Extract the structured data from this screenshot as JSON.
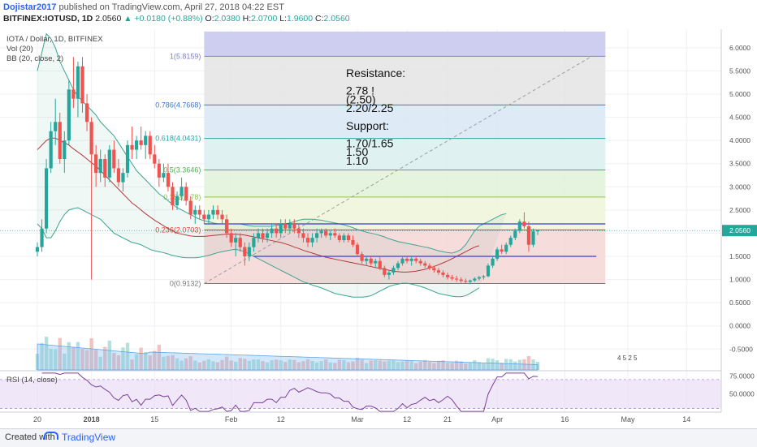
{
  "header": {
    "publisher": "Dojistar2017",
    "published_text": " published on TradingView.com, April 27, 2018 04:22 EST",
    "symbol": "BITFINEX:IOTUSD, 1D",
    "last": "2.0560",
    "change": "▲ +0.0180 (+0.88%)",
    "o_label": "O:",
    "o": "2.0380",
    "h_label": "H:",
    "h": "2.0700",
    "l_label": "L:",
    "l": "1.9600",
    "c_label": "C:",
    "c": "2.0560"
  },
  "legend": {
    "title": "IOTA / Dollar, 1D, BITFINEX",
    "vol": "Vol (20)",
    "bb": "BB (20, close, 2)",
    "rsi": "RSI (14, close)"
  },
  "footer": {
    "created": "Created with",
    "brand": "TradingView"
  },
  "colors": {
    "up": "#26a69a",
    "down": "#ef5350",
    "bb_band": "#3fa38f",
    "bb_basis": "#b3393a",
    "rsi": "#7b3f98",
    "accent": "#2962ff"
  },
  "chart_data": {
    "type": "candlestick",
    "yaxis_ticks": [
      "6.0000",
      "5.5000",
      "5.0000",
      "4.5000",
      "4.0000",
      "3.5000",
      "3.0000",
      "2.5000",
      "2.0000",
      "1.5000",
      "1.0000",
      "0.5000",
      "0.0000",
      "-0.5000"
    ],
    "yaxis_values": [
      6,
      5.5,
      5,
      4.5,
      4,
      3.5,
      3,
      2.5,
      2,
      1.5,
      1,
      0.5,
      0,
      -0.5
    ],
    "ylim": [
      -0.95,
      6.4
    ],
    "last_price_label": "2.0560",
    "last_price": 2.056,
    "rsi_ticks": [
      "75.0000",
      "50.0000"
    ],
    "rsi_tick_values": [
      75,
      50
    ],
    "x_ticks": [
      {
        "label": "20",
        "day": 0
      },
      {
        "label": "2018",
        "day": 12
      },
      {
        "label": "15",
        "day": 26
      },
      {
        "label": "Feb",
        "day": 43
      },
      {
        "label": "12",
        "day": 54
      },
      {
        "label": "Mar",
        "day": 71
      },
      {
        "label": "12",
        "day": 82
      },
      {
        "label": "21",
        "day": 91
      },
      {
        "label": "Apr",
        "day": 102
      },
      {
        "label": "16",
        "day": 117
      },
      {
        "label": "May",
        "day": 131
      },
      {
        "label": "14",
        "day": 144
      }
    ],
    "fib_levels": [
      {
        "ratio": "1",
        "value": 5.8159,
        "label": "1(5.8159)",
        "color": "#7b7fd6",
        "fill": "#c9c9f0"
      },
      {
        "ratio": "0.786",
        "value": 4.7668,
        "label": "0.786(4.7668)",
        "color": "#3b78c4",
        "fill": "#e4e4e4"
      },
      {
        "ratio": "0.618",
        "value": 4.0431,
        "label": "0.618(4.0431)",
        "color": "#2aa5a5",
        "fill": "#d8e8f4"
      },
      {
        "ratio": "0.5",
        "value": 3.3646,
        "label": "0.5(3.3646)",
        "color": "#4caf50",
        "fill": "#d9f0ee"
      },
      {
        "ratio": "0.382",
        "value": 2.78,
        "label": "0.382(2.78)",
        "color": "#8bc34a",
        "fill": "#dff2d8"
      },
      {
        "ratio": "0.236",
        "value": 2.0703,
        "label": "0.236(2.0703)",
        "color": "#e53935",
        "fill": "#eef6d9"
      },
      {
        "ratio": "0",
        "value": 0.9132,
        "label": "0(0.9132)",
        "color": "#777777",
        "fill": "#f6d6d6"
      }
    ],
    "annotation_lines": [
      "Resistance:",
      "",
      "2.78 !",
      "(2.50)",
      "2.20/2.25",
      "",
      "Support:",
      "",
      "1.70/1.65",
      "1.50",
      "1.10"
    ],
    "horizontal_lines": [
      {
        "value": 2.2,
        "from_day": 37,
        "to_day": 126
      },
      {
        "value": 1.5,
        "from_day": 48,
        "to_day": 124
      }
    ],
    "trend_line": {
      "from": {
        "day": 37,
        "value": 0.9132
      },
      "to": {
        "day": 123,
        "value": 5.8159
      }
    },
    "events_label": "4   5 2 5",
    "candles": [
      [
        1.6,
        1.8,
        1.5,
        1.7
      ],
      [
        1.7,
        2.3,
        1.6,
        2.1
      ],
      [
        2.1,
        3.6,
        2.0,
        3.4
      ],
      [
        3.4,
        4.4,
        3.3,
        4.2
      ],
      [
        4.2,
        4.9,
        3.9,
        4.4
      ],
      [
        4.4,
        4.6,
        3.5,
        3.6
      ],
      [
        3.6,
        4.2,
        3.3,
        4.0
      ],
      [
        4.0,
        5.3,
        3.9,
        5.1
      ],
      [
        5.1,
        5.8,
        4.7,
        4.9
      ],
      [
        4.9,
        5.7,
        4.5,
        5.6
      ],
      [
        5.6,
        5.8,
        4.6,
        4.8
      ],
      [
        4.8,
        5.0,
        4.2,
        4.4
      ],
      [
        4.4,
        4.5,
        1.0,
        3.7
      ],
      [
        3.7,
        3.9,
        3.0,
        3.3
      ],
      [
        3.3,
        3.8,
        3.1,
        3.6
      ],
      [
        3.6,
        3.7,
        3.0,
        3.2
      ],
      [
        3.2,
        3.9,
        3.1,
        3.8
      ],
      [
        3.8,
        4.0,
        3.3,
        3.4
      ],
      [
        3.4,
        3.6,
        3.0,
        3.1
      ],
      [
        3.1,
        3.4,
        2.9,
        3.3
      ],
      [
        3.3,
        4.0,
        3.2,
        3.9
      ],
      [
        3.9,
        4.3,
        3.6,
        3.8
      ],
      [
        3.8,
        4.1,
        3.6,
        4.0
      ],
      [
        4.0,
        4.3,
        3.8,
        3.9
      ],
      [
        3.9,
        4.2,
        3.6,
        4.1
      ],
      [
        4.1,
        4.2,
        3.6,
        3.7
      ],
      [
        3.7,
        3.9,
        3.4,
        3.5
      ],
      [
        3.5,
        3.6,
        3.0,
        3.2
      ],
      [
        3.2,
        3.5,
        3.1,
        3.3
      ],
      [
        3.3,
        3.5,
        2.9,
        3.0
      ],
      [
        3.0,
        3.1,
        2.5,
        2.6
      ],
      [
        2.6,
        2.9,
        2.5,
        2.8
      ],
      [
        2.8,
        3.2,
        2.7,
        3.0
      ],
      [
        3.0,
        3.1,
        2.6,
        2.7
      ],
      [
        2.7,
        2.8,
        2.3,
        2.4
      ],
      [
        2.4,
        2.6,
        2.2,
        2.5
      ],
      [
        2.5,
        2.6,
        2.3,
        2.4
      ],
      [
        2.4,
        2.5,
        2.2,
        2.3
      ],
      [
        2.3,
        2.5,
        2.2,
        2.4
      ],
      [
        2.4,
        2.6,
        2.3,
        2.5
      ],
      [
        2.5,
        2.6,
        2.3,
        2.4
      ],
      [
        2.4,
        2.5,
        2.2,
        2.3
      ],
      [
        2.3,
        2.4,
        1.9,
        2.0
      ],
      [
        2.0,
        2.1,
        1.7,
        1.8
      ],
      [
        1.8,
        2.0,
        1.5,
        1.9
      ],
      [
        1.9,
        2.0,
        1.6,
        1.7
      ],
      [
        1.7,
        1.8,
        1.3,
        1.5
      ],
      [
        1.5,
        1.8,
        1.4,
        1.7
      ],
      [
        1.7,
        2.0,
        1.6,
        1.9
      ],
      [
        1.9,
        2.1,
        1.8,
        2.0
      ],
      [
        2.0,
        2.1,
        1.8,
        1.9
      ],
      [
        1.9,
        2.1,
        1.8,
        2.0
      ],
      [
        2.0,
        2.2,
        1.9,
        2.1
      ],
      [
        2.1,
        2.2,
        1.9,
        2.0
      ],
      [
        2.0,
        2.3,
        1.9,
        2.2
      ],
      [
        2.2,
        2.3,
        2.0,
        2.1
      ],
      [
        2.1,
        2.3,
        2.0,
        2.2
      ],
      [
        2.2,
        2.3,
        2.0,
        2.1
      ],
      [
        2.1,
        2.2,
        1.9,
        2.0
      ],
      [
        2.0,
        2.1,
        1.8,
        1.9
      ],
      [
        1.9,
        2.0,
        1.7,
        1.8
      ],
      [
        1.8,
        2.0,
        1.7,
        1.9
      ],
      [
        1.9,
        2.1,
        1.8,
        2.0
      ],
      [
        2.0,
        2.1,
        1.9,
        2.05
      ],
      [
        2.05,
        2.1,
        1.9,
        1.95
      ],
      [
        1.95,
        2.05,
        1.85,
        2.0
      ],
      [
        2.0,
        2.1,
        1.9,
        1.95
      ],
      [
        1.95,
        2.0,
        1.8,
        1.85
      ],
      [
        1.85,
        2.0,
        1.8,
        1.95
      ],
      [
        1.95,
        2.0,
        1.8,
        1.85
      ],
      [
        1.85,
        1.95,
        1.7,
        1.75
      ],
      [
        1.75,
        1.8,
        1.5,
        1.55
      ],
      [
        1.55,
        1.6,
        1.35,
        1.4
      ],
      [
        1.4,
        1.5,
        1.3,
        1.45
      ],
      [
        1.45,
        1.5,
        1.3,
        1.35
      ],
      [
        1.35,
        1.45,
        1.25,
        1.4
      ],
      [
        1.4,
        1.5,
        1.2,
        1.25
      ],
      [
        1.25,
        1.3,
        1.05,
        1.1
      ],
      [
        1.1,
        1.2,
        1.0,
        1.15
      ],
      [
        1.15,
        1.3,
        1.1,
        1.25
      ],
      [
        1.25,
        1.4,
        1.2,
        1.35
      ],
      [
        1.35,
        1.5,
        1.3,
        1.45
      ],
      [
        1.45,
        1.5,
        1.35,
        1.4
      ],
      [
        1.4,
        1.5,
        1.3,
        1.45
      ],
      [
        1.45,
        1.5,
        1.35,
        1.4
      ],
      [
        1.4,
        1.45,
        1.3,
        1.35
      ],
      [
        1.35,
        1.4,
        1.25,
        1.3
      ],
      [
        1.3,
        1.35,
        1.2,
        1.25
      ],
      [
        1.25,
        1.3,
        1.15,
        1.2
      ],
      [
        1.2,
        1.25,
        1.1,
        1.15
      ],
      [
        1.15,
        1.2,
        1.05,
        1.1
      ],
      [
        1.1,
        1.15,
        1.0,
        1.05
      ],
      [
        1.05,
        1.1,
        0.98,
        1.02
      ],
      [
        1.02,
        1.08,
        0.95,
        1.0
      ],
      [
        1.0,
        1.05,
        0.93,
        0.97
      ],
      [
        0.97,
        1.02,
        0.92,
        0.95
      ],
      [
        0.95,
        1.0,
        0.9,
        0.98
      ],
      [
        0.98,
        1.05,
        0.95,
        1.02
      ],
      [
        1.02,
        1.08,
        0.98,
        1.05
      ],
      [
        1.05,
        1.1,
        1.0,
        1.07
      ],
      [
        1.07,
        1.35,
        1.05,
        1.3
      ],
      [
        1.3,
        1.5,
        1.25,
        1.45
      ],
      [
        1.45,
        1.7,
        1.4,
        1.65
      ],
      [
        1.65,
        1.75,
        1.55,
        1.6
      ],
      [
        1.6,
        1.8,
        1.55,
        1.75
      ],
      [
        1.75,
        1.95,
        1.7,
        1.9
      ],
      [
        1.9,
        2.1,
        1.85,
        2.05
      ],
      [
        2.05,
        2.3,
        2.0,
        2.25
      ],
      [
        2.25,
        2.45,
        2.1,
        2.15
      ],
      [
        2.15,
        2.25,
        1.6,
        1.75
      ],
      [
        1.75,
        2.1,
        1.7,
        2.04
      ],
      [
        2.04,
        2.07,
        1.96,
        2.056
      ]
    ],
    "bb_upper": [
      5.5,
      5.9,
      6.3,
      6.2,
      6.0,
      5.7,
      5.5,
      5.3,
      5.1,
      4.95,
      4.85,
      4.75,
      4.65,
      4.55,
      4.4,
      4.3,
      4.2,
      4.1,
      3.95,
      3.8,
      3.65,
      3.5,
      3.35,
      3.25,
      3.15,
      3.05,
      2.95,
      2.85,
      2.78,
      2.7,
      2.62,
      2.55,
      2.5,
      2.45,
      2.4,
      2.35,
      2.3,
      2.27,
      2.25,
      2.22,
      2.2,
      2.2,
      2.2,
      2.2,
      2.2,
      2.2,
      2.18,
      2.16,
      2.15,
      2.15,
      2.15,
      2.15,
      2.15,
      2.17,
      2.18,
      2.2,
      2.22,
      2.25,
      2.28,
      2.3,
      2.3,
      2.3,
      2.29,
      2.28,
      2.26,
      2.24,
      2.22,
      2.2,
      2.18,
      2.15,
      2.12,
      2.08,
      2.05,
      2.02,
      2.0,
      1.98,
      1.95,
      1.92,
      1.88,
      1.85,
      1.82,
      1.8,
      1.78,
      1.76,
      1.74,
      1.72,
      1.7,
      1.68,
      1.65,
      1.62,
      1.6,
      1.58,
      1.57,
      1.6,
      1.65,
      1.75,
      1.9,
      2.05,
      2.15,
      2.2,
      2.25,
      2.3,
      2.35,
      2.4,
      2.42
    ],
    "bb_basis": [
      3.8,
      3.9,
      4.0,
      4.05,
      4.05,
      4.0,
      3.95,
      3.9,
      3.82,
      3.75,
      3.68,
      3.6,
      3.52,
      3.45,
      3.35,
      3.25,
      3.15,
      3.05,
      2.95,
      2.85,
      2.75,
      2.65,
      2.58,
      2.5,
      2.42,
      2.35,
      2.28,
      2.22,
      2.16,
      2.1,
      2.05,
      2.0,
      1.98,
      1.96,
      1.94,
      1.93,
      1.93,
      1.93,
      1.94,
      1.95,
      1.96,
      1.97,
      1.98,
      1.98,
      1.98,
      1.97,
      1.96,
      1.94,
      1.92,
      1.9,
      1.88,
      1.86,
      1.84,
      1.82,
      1.8,
      1.77,
      1.74,
      1.7,
      1.67,
      1.63,
      1.6,
      1.57,
      1.54,
      1.51,
      1.48,
      1.46,
      1.44,
      1.42,
      1.4,
      1.38,
      1.36,
      1.34,
      1.32,
      1.3,
      1.28,
      1.26,
      1.24,
      1.22,
      1.2,
      1.18,
      1.17,
      1.16,
      1.16,
      1.17,
      1.18,
      1.2,
      1.22,
      1.25,
      1.28,
      1.32,
      1.36,
      1.4,
      1.45,
      1.5,
      1.55,
      1.6,
      1.65,
      1.7,
      1.73
    ],
    "bb_lower": [
      2.2,
      2.1,
      1.9,
      1.9,
      2.05,
      2.25,
      2.4,
      2.5,
      2.53,
      2.55,
      2.5,
      2.45,
      2.4,
      2.35,
      2.3,
      2.2,
      2.1,
      2.0,
      1.95,
      1.9,
      1.85,
      1.8,
      1.78,
      1.75,
      1.7,
      1.65,
      1.62,
      1.6,
      1.58,
      1.55,
      1.52,
      1.5,
      1.48,
      1.47,
      1.47,
      1.47,
      1.48,
      1.5,
      1.52,
      1.55,
      1.58,
      1.6,
      1.62,
      1.64,
      1.65,
      1.63,
      1.6,
      1.55,
      1.5,
      1.45,
      1.4,
      1.35,
      1.3,
      1.25,
      1.2,
      1.15,
      1.1,
      1.05,
      1.0,
      0.95,
      0.92,
      0.88,
      0.85,
      0.82,
      0.78,
      0.74,
      0.7,
      0.68,
      0.66,
      0.64,
      0.62,
      0.62,
      0.62,
      0.63,
      0.65,
      0.7,
      0.75,
      0.8,
      0.85,
      0.88,
      0.9,
      0.92,
      0.92,
      0.9,
      0.88,
      0.85,
      0.82,
      0.78,
      0.74,
      0.7,
      0.68,
      0.66,
      0.64,
      0.63,
      0.63,
      0.65,
      0.7,
      0.76,
      0.82
    ]
  }
}
